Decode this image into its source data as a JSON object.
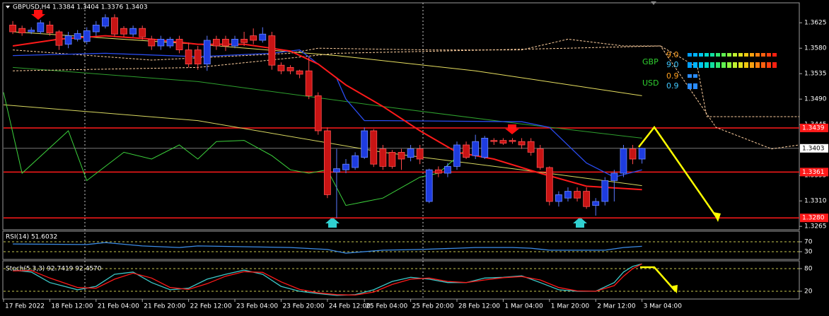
{
  "chart_data": [
    {
      "type": "candlestick",
      "title": "GBPUSD,H4  1.3384 1.3404 1.3376 1.3403",
      "up_color": "#1e3ce0",
      "down_color": "#c81414",
      "open": [
        1.3621,
        1.3615,
        1.3609,
        1.3609,
        1.3621,
        1.3609,
        1.3587,
        1.3596,
        1.3592,
        1.3609,
        1.3619,
        1.3634,
        1.3615,
        1.3605,
        1.3615,
        1.3596,
        1.3584,
        1.3584,
        1.3596,
        1.3577,
        1.3577,
        1.3552,
        1.3596,
        1.3596,
        1.3584,
        1.3596,
        1.3602,
        1.3594,
        1.3602,
        1.355,
        1.3546,
        1.354,
        1.354,
        1.3496,
        1.3434,
        1.3361,
        1.3365,
        1.3369,
        1.3387,
        1.3434,
        1.3402,
        1.3396,
        1.3396,
        1.3387,
        1.3402,
        1.3309,
        1.3365,
        1.3359,
        1.3371,
        1.3409,
        1.339,
        1.3387,
        1.3417,
        1.3417,
        1.3417,
        1.3415,
        1.3415,
        1.3402,
        1.3369,
        1.3309,
        1.3315,
        1.3327,
        1.3327,
        1.3302,
        1.3309,
        1.3346,
        1.3359,
        1.3402,
        1.3384
      ],
      "high": [
        1.3628,
        1.362,
        1.3617,
        1.363,
        1.3628,
        1.3612,
        1.3609,
        1.3612,
        1.3617,
        1.3628,
        1.364,
        1.364,
        1.3619,
        1.362,
        1.362,
        1.3602,
        1.3602,
        1.36,
        1.3602,
        1.359,
        1.3584,
        1.3602,
        1.3602,
        1.3602,
        1.3602,
        1.3609,
        1.3615,
        1.3617,
        1.3609,
        1.3555,
        1.355,
        1.3542,
        1.3565,
        1.3502,
        1.344,
        1.3402,
        1.3384,
        1.3396,
        1.344,
        1.3437,
        1.3409,
        1.34,
        1.3402,
        1.3409,
        1.3409,
        1.3367,
        1.3371,
        1.3377,
        1.3415,
        1.3415,
        1.3427,
        1.3425,
        1.3421,
        1.3421,
        1.3421,
        1.3421,
        1.3421,
        1.3409,
        1.3371,
        1.3327,
        1.3334,
        1.3334,
        1.3334,
        1.3315,
        1.3352,
        1.3365,
        1.3409,
        1.3409,
        1.3404
      ],
      "low": [
        1.3605,
        1.3602,
        1.3605,
        1.3605,
        1.3602,
        1.3577,
        1.358,
        1.3592,
        1.3587,
        1.3602,
        1.3615,
        1.36,
        1.36,
        1.36,
        1.3595,
        1.3577,
        1.3577,
        1.358,
        1.3571,
        1.3546,
        1.3542,
        1.354,
        1.3577,
        1.3575,
        1.358,
        1.3584,
        1.3587,
        1.359,
        1.3542,
        1.3534,
        1.3534,
        1.3527,
        1.349,
        1.3427,
        1.3315,
        1.328,
        1.3359,
        1.3365,
        1.3384,
        1.337,
        1.3365,
        1.3367,
        1.3365,
        1.338,
        1.3375,
        1.3306,
        1.3352,
        1.3352,
        1.3365,
        1.3384,
        1.3384,
        1.3384,
        1.3409,
        1.3409,
        1.3411,
        1.3402,
        1.339,
        1.3365,
        1.3302,
        1.33,
        1.3309,
        1.3309,
        1.3296,
        1.3284,
        1.3302,
        1.3309,
        1.3352,
        1.3375,
        1.3376
      ],
      "close": [
        1.3609,
        1.3607,
        1.3612,
        1.3625,
        1.3607,
        1.3585,
        1.3602,
        1.3606,
        1.3611,
        1.3621,
        1.3634,
        1.3605,
        1.3605,
        1.3615,
        1.36,
        1.3584,
        1.3596,
        1.3596,
        1.3577,
        1.3552,
        1.3552,
        1.3594,
        1.3584,
        1.3584,
        1.3596,
        1.359,
        1.3594,
        1.3605,
        1.355,
        1.354,
        1.354,
        1.3534,
        1.3496,
        1.3434,
        1.3321,
        1.3367,
        1.3375,
        1.339,
        1.3434,
        1.3375,
        1.3371,
        1.3371,
        1.3384,
        1.3402,
        1.3384,
        1.3365,
        1.3359,
        1.3371,
        1.3409,
        1.3387,
        1.3415,
        1.3421,
        1.3415,
        1.3412,
        1.3415,
        1.3409,
        1.3396,
        1.3369,
        1.3309,
        1.3321,
        1.3327,
        1.3315,
        1.33,
        1.3309,
        1.3346,
        1.3359,
        1.3402,
        1.3384,
        1.3403
      ],
      "lines": [
        {
          "color": "#e8e060",
          "style": "solid",
          "width": 1,
          "x": [
            0,
            20,
            35,
            50,
            68
          ],
          "values": [
            1.3609,
            1.3587,
            1.3567,
            1.354,
            1.3496
          ]
        },
        {
          "color": "#d8d860",
          "style": "solid",
          "width": 1,
          "x": [
            -1,
            20,
            40,
            55,
            68
          ],
          "values": [
            1.348,
            1.3452,
            1.3396,
            1.3365,
            1.3337
          ]
        },
        {
          "color": "#2ea02e",
          "style": "solid",
          "width": 1,
          "x": [
            0,
            20,
            40,
            55,
            68
          ],
          "values": [
            1.3546,
            1.3521,
            1.3477,
            1.3446,
            1.3421
          ]
        },
        {
          "color": "#3cd23c",
          "style": "solid",
          "width": 1,
          "x": [
            -1,
            1,
            6,
            8,
            12,
            15,
            18,
            20,
            22,
            25,
            28,
            30,
            32,
            34,
            36,
            40,
            44,
            46,
            49
          ],
          "values": [
            1.3502,
            1.3359,
            1.3434,
            1.3346,
            1.3396,
            1.3384,
            1.3409,
            1.3384,
            1.3415,
            1.3417,
            1.339,
            1.3365,
            1.3359,
            1.3365,
            1.3302,
            1.3315,
            1.3352,
            1.3359,
            1.3402
          ]
        },
        {
          "color": "#ffd0a0",
          "style": "dashed",
          "width": 1,
          "x": [
            0,
            15,
            30,
            33,
            45,
            55,
            60,
            66,
            70,
            74,
            75,
            80,
            85
          ],
          "values": [
            1.3577,
            1.3559,
            1.3571,
            1.358,
            1.3577,
            1.3577,
            1.3596,
            1.3584,
            1.3584,
            1.3546,
            1.3459,
            1.3459,
            1.3459
          ]
        },
        {
          "color": "#ffd0a0",
          "style": "dashed",
          "width": 1,
          "x": [
            0,
            20,
            35,
            60,
            70,
            76,
            82,
            85
          ],
          "values": [
            1.354,
            1.3546,
            1.3571,
            1.358,
            1.3584,
            1.344,
            1.3402,
            1.3409
          ]
        },
        {
          "color": "#2a4cf0",
          "style": "solid",
          "width": 1.3,
          "x": [
            0,
            10,
            20,
            28,
            31,
            33,
            35,
            36,
            38,
            40,
            55,
            58,
            62,
            65,
            68
          ],
          "values": [
            1.3567,
            1.3571,
            1.3565,
            1.3571,
            1.3577,
            1.3552,
            1.3527,
            1.349,
            1.3452,
            1.3452,
            1.345,
            1.344,
            1.3377,
            1.3352,
            1.3365
          ]
        },
        {
          "color": "#ff1a1a",
          "style": "solid",
          "width": 2,
          "x": [
            0,
            5,
            10,
            15,
            20,
            25,
            30,
            33,
            36,
            40,
            44,
            48,
            52,
            57,
            62,
            68
          ],
          "values": [
            1.3584,
            1.3596,
            1.3602,
            1.3596,
            1.3587,
            1.3587,
            1.3575,
            1.3552,
            1.3515,
            1.3477,
            1.3434,
            1.3396,
            1.3384,
            1.3359,
            1.3336,
            1.333
          ]
        }
      ],
      "levels": [
        {
          "value": 1.3439,
          "label": "1.3439"
        },
        {
          "value": 1.3361,
          "label": "1.3361"
        },
        {
          "value": 1.328,
          "label": "1.3280"
        }
      ],
      "level_color": "#ff1a1a",
      "current_price": 1.3403,
      "xlim": [
        -1,
        85
      ],
      "ylim": [
        1.3259,
        1.3659
      ],
      "yticks": [
        1.3625,
        {
          "value": 1.358,
          "label": "1.3580"
        },
        1.3535,
        {
          "value": 1.349,
          "label": "1.3490"
        },
        1.3445,
        1.3355,
        {
          "value": 1.331,
          "label": "1.3310"
        },
        1.3265
      ],
      "xticks": [
        {
          "value": -1,
          "label": "17 Feb 2022"
        },
        {
          "value": 4,
          "label": "18 Feb 12:00"
        },
        {
          "value": 9,
          "label": "21 Feb 04:00"
        },
        {
          "value": 14,
          "label": "21 Feb 20:00"
        },
        {
          "value": 19,
          "label": "22 Feb 12:00"
        },
        {
          "value": 24,
          "label": "23 Feb 04:00"
        },
        {
          "value": 29,
          "label": "23 Feb 20:00"
        },
        {
          "value": 34,
          "label": "24 Feb 12:00"
        },
        {
          "value": 38,
          "label": "25 Feb 04:00"
        },
        {
          "value": 43,
          "label": "25 Feb 20:00"
        },
        {
          "value": 48,
          "label": "28 Feb 12:00"
        },
        {
          "value": 53,
          "label": "1 Mar 04:00"
        },
        {
          "value": 58,
          "label": "1 Mar 20:00"
        },
        {
          "value": 63,
          "label": "2 Mar 12:00"
        },
        {
          "value": 68,
          "label": "3 Mar 04:00"
        }
      ],
      "currency_strength": [
        {
          "currency": "GBP",
          "readings": [
            "9.0",
            "9.0"
          ]
        },
        {
          "currency": "USD",
          "readings": [
            "0.9",
            "0.9"
          ]
        }
      ]
    },
    {
      "type": "line",
      "title": "RSI(14) 51.6032",
      "ylim": [
        0,
        100
      ],
      "yticks": [
        70,
        30
      ],
      "series": [
        {
          "color": "#3c8ce6",
          "x": [
            0,
            8,
            10,
            14,
            18,
            20,
            25,
            30,
            34,
            36,
            40,
            44,
            48,
            50,
            54,
            56,
            58,
            62,
            64,
            66,
            68
          ],
          "values": [
            61,
            59,
            67,
            53,
            47,
            53,
            50,
            47,
            39,
            24,
            36,
            39,
            44,
            47,
            47,
            44,
            36,
            36,
            36,
            47,
            51.6032
          ]
        }
      ]
    },
    {
      "type": "line",
      "title": "Stoch(5,3,3) 92.7419 92.4570",
      "ylim": [
        0,
        100
      ],
      "yticks": [
        80,
        20
      ],
      "series": [
        {
          "color": "#3cc8c8",
          "x": [
            0,
            2,
            4,
            7,
            9,
            11,
            13,
            15,
            17,
            19,
            21,
            23,
            25,
            27,
            29,
            31,
            33,
            35,
            37,
            39,
            41,
            43,
            45,
            47,
            49,
            51,
            53,
            55,
            57,
            59,
            61,
            63,
            65,
            66,
            67,
            68
          ],
          "values": [
            76,
            71,
            43,
            24,
            33,
            65,
            71,
            43,
            24,
            28,
            52,
            65,
            76,
            65,
            33,
            20,
            14,
            9,
            11,
            24,
            46,
            57,
            52,
            43,
            43,
            55,
            57,
            61,
            43,
            24,
            20,
            20,
            43,
            71,
            86,
            92.7419
          ]
        },
        {
          "color": "#ff1a1a",
          "x": [
            0,
            2,
            4,
            7,
            9,
            11,
            13,
            15,
            17,
            19,
            21,
            23,
            25,
            27,
            29,
            31,
            33,
            35,
            37,
            39,
            41,
            43,
            45,
            47,
            49,
            51,
            53,
            55,
            57,
            59,
            61,
            63,
            65,
            66,
            67,
            68
          ],
          "values": [
            74,
            75,
            55,
            30,
            28,
            52,
            68,
            55,
            30,
            25,
            40,
            60,
            72,
            70,
            45,
            25,
            16,
            11,
            10,
            18,
            38,
            52,
            55,
            46,
            43,
            50,
            56,
            59,
            50,
            30,
            21,
            20,
            35,
            60,
            80,
            92.457
          ]
        }
      ]
    }
  ]
}
